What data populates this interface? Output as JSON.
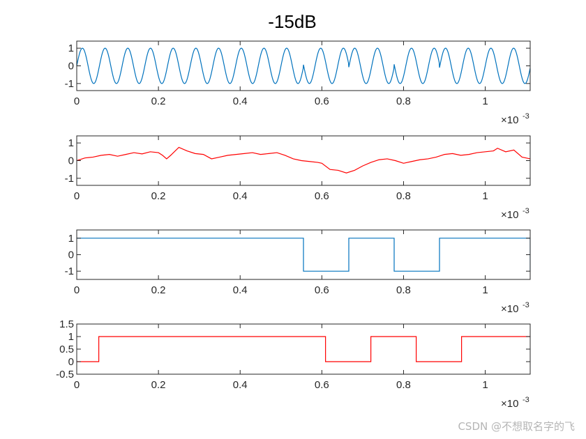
{
  "figure_title": "-15dB",
  "watermark": "CSDN @不想取名字的飞",
  "colors": {
    "blue": "#0072BD",
    "red": "#FF0000",
    "axis": "#262626"
  },
  "chart_data": [
    {
      "type": "line",
      "series_color": "blue",
      "xlim": [
        0,
        0.00111
      ],
      "ylim": [
        -1.4,
        1.4
      ],
      "x_ticks": [
        0,
        0.0002,
        0.0004,
        0.0006,
        0.0008,
        0.001
      ],
      "x_tick_labels": [
        "0",
        "0.2",
        "0.4",
        "0.6",
        "0.8",
        "1"
      ],
      "x_exponent": "-3",
      "y_ticks": [
        -1,
        0,
        1
      ],
      "y_tick_labels": [
        "-1",
        "0",
        "1"
      ],
      "signal": {
        "kind": "bpsk_carrier",
        "carrier_hz": 18000,
        "amplitude": 1,
        "symbol_duration": 0.000111,
        "symbols": [
          1,
          1,
          1,
          1,
          1,
          -1,
          1,
          -1,
          1,
          1
        ]
      }
    },
    {
      "type": "line",
      "series_color": "red",
      "xlim": [
        0,
        0.00111
      ],
      "ylim": [
        -1.4,
        1.4
      ],
      "x_ticks": [
        0,
        0.0002,
        0.0004,
        0.0006,
        0.0008,
        0.001
      ],
      "x_tick_labels": [
        "0",
        "0.2",
        "0.4",
        "0.6",
        "0.8",
        "1"
      ],
      "x_exponent": "-3",
      "y_ticks": [
        -1,
        0,
        1
      ],
      "y_tick_labels": [
        "-1",
        "0",
        "1"
      ],
      "points": [
        [
          0,
          0.0
        ],
        [
          2e-05,
          0.15
        ],
        [
          4e-05,
          0.2
        ],
        [
          6e-05,
          0.3
        ],
        [
          8e-05,
          0.35
        ],
        [
          0.0001,
          0.25
        ],
        [
          0.00012,
          0.35
        ],
        [
          0.00014,
          0.45
        ],
        [
          0.00016,
          0.38
        ],
        [
          0.00018,
          0.5
        ],
        [
          0.0002,
          0.45
        ],
        [
          0.00021,
          0.3
        ],
        [
          0.00022,
          0.1
        ],
        [
          0.00023,
          0.3
        ],
        [
          0.00025,
          0.75
        ],
        [
          0.00027,
          0.55
        ],
        [
          0.00029,
          0.4
        ],
        [
          0.00031,
          0.35
        ],
        [
          0.00033,
          0.1
        ],
        [
          0.00035,
          0.2
        ],
        [
          0.00037,
          0.3
        ],
        [
          0.00039,
          0.35
        ],
        [
          0.00041,
          0.4
        ],
        [
          0.00043,
          0.45
        ],
        [
          0.00045,
          0.35
        ],
        [
          0.00047,
          0.4
        ],
        [
          0.00049,
          0.45
        ],
        [
          0.00051,
          0.3
        ],
        [
          0.00053,
          0.1
        ],
        [
          0.00055,
          0.0
        ],
        [
          0.00057,
          -0.05
        ],
        [
          0.00059,
          -0.1
        ],
        [
          0.0006,
          -0.15
        ],
        [
          0.00062,
          -0.5
        ],
        [
          0.00064,
          -0.55
        ],
        [
          0.00066,
          -0.7
        ],
        [
          0.00068,
          -0.55
        ],
        [
          0.0007,
          -0.3
        ],
        [
          0.00072,
          -0.1
        ],
        [
          0.00074,
          0.05
        ],
        [
          0.00076,
          0.1
        ],
        [
          0.00078,
          0.0
        ],
        [
          0.0008,
          -0.15
        ],
        [
          0.00082,
          -0.05
        ],
        [
          0.00084,
          0.05
        ],
        [
          0.00086,
          0.1
        ],
        [
          0.00088,
          0.2
        ],
        [
          0.0009,
          0.35
        ],
        [
          0.00092,
          0.4
        ],
        [
          0.00094,
          0.3
        ],
        [
          0.00096,
          0.35
        ],
        [
          0.00098,
          0.45
        ],
        [
          0.001,
          0.5
        ],
        [
          0.00102,
          0.55
        ],
        [
          0.00103,
          0.7
        ],
        [
          0.00105,
          0.5
        ],
        [
          0.00107,
          0.6
        ],
        [
          0.00109,
          0.2
        ],
        [
          0.00111,
          0.1
        ]
      ]
    },
    {
      "type": "line",
      "series_color": "blue",
      "xlim": [
        0,
        0.00111
      ],
      "ylim": [
        -1.5,
        1.5
      ],
      "x_ticks": [
        0,
        0.0002,
        0.0004,
        0.0006,
        0.0008,
        0.001
      ],
      "x_tick_labels": [
        "0",
        "0.2",
        "0.4",
        "0.6",
        "0.8",
        "1"
      ],
      "x_exponent": "-3",
      "y_ticks": [
        -1,
        0,
        1
      ],
      "y_tick_labels": [
        "-1",
        "0",
        "1"
      ],
      "points": [
        [
          0,
          1
        ],
        [
          0.000555,
          1
        ],
        [
          0.000555,
          -1
        ],
        [
          0.000666,
          -1
        ],
        [
          0.000666,
          1
        ],
        [
          0.000777,
          1
        ],
        [
          0.000777,
          -1
        ],
        [
          0.000888,
          -1
        ],
        [
          0.000888,
          1
        ],
        [
          0.00111,
          1
        ],
        [
          0.00111,
          -1
        ]
      ]
    },
    {
      "type": "line",
      "series_color": "red",
      "xlim": [
        0,
        0.00111
      ],
      "ylim": [
        -0.5,
        1.5
      ],
      "x_ticks": [
        0,
        0.0002,
        0.0004,
        0.0006,
        0.0008,
        0.001
      ],
      "x_tick_labels": [
        "0",
        "0.2",
        "0.4",
        "0.6",
        "0.8",
        "1"
      ],
      "x_exponent": "-3",
      "y_ticks": [
        -0.5,
        0,
        0.5,
        1,
        1.5
      ],
      "y_tick_labels": [
        "-0.5",
        "0",
        "0.5",
        "1",
        "1.5"
      ],
      "points": [
        [
          0,
          0
        ],
        [
          5.4e-05,
          0
        ],
        [
          5.4e-05,
          1
        ],
        [
          0.000609,
          1
        ],
        [
          0.000609,
          0
        ],
        [
          0.00072,
          0
        ],
        [
          0.00072,
          1
        ],
        [
          0.000831,
          1
        ],
        [
          0.000831,
          0
        ],
        [
          0.000942,
          0
        ],
        [
          0.000942,
          1
        ],
        [
          0.00111,
          1
        ]
      ]
    }
  ]
}
